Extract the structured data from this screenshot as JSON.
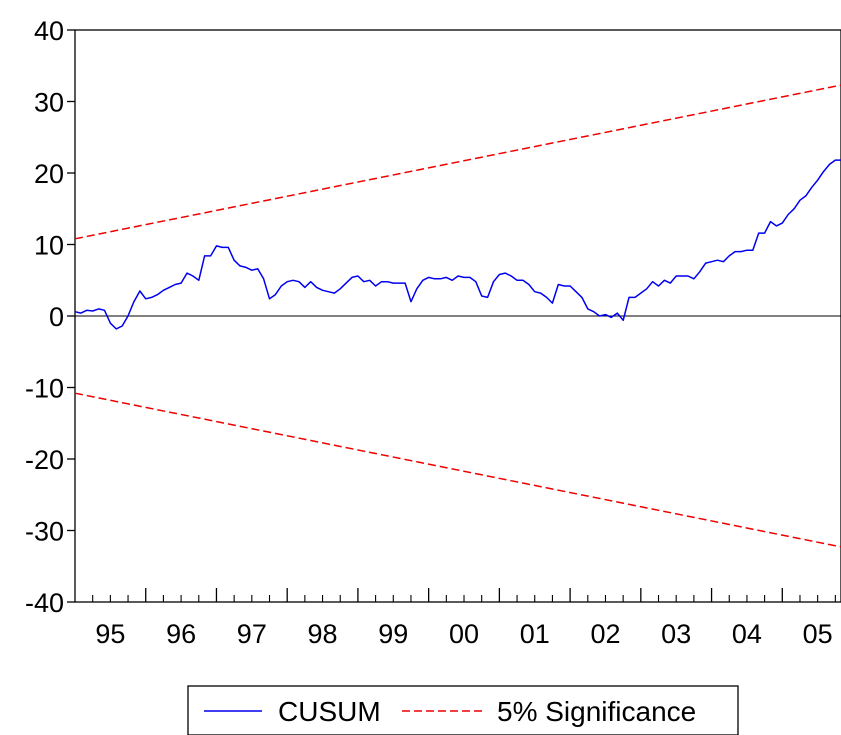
{
  "chart_data": {
    "type": "line",
    "title": "",
    "xlabel": "",
    "ylabel": "",
    "ylim": [
      -40,
      40
    ],
    "xlim": [
      1995.0,
      2005.83
    ],
    "yticks": [
      "40",
      "30",
      "20",
      "10",
      "0",
      "-10",
      "-20",
      "-30",
      "-40"
    ],
    "xtick_labels": [
      "95",
      "96",
      "97",
      "98",
      "99",
      "00",
      "01",
      "02",
      "03",
      "04",
      "05"
    ],
    "grid": false,
    "zero_line": true,
    "legend_position": "bottom-center",
    "colors": {
      "cusum": "#0000ee",
      "significance": "#ee0000"
    },
    "series": [
      {
        "name": "CUSUM",
        "style": "solid",
        "x": [
          1995.0,
          1995.083,
          1995.167,
          1995.25,
          1995.333,
          1995.417,
          1995.5,
          1995.583,
          1995.667,
          1995.75,
          1995.833,
          1995.917,
          1996.0,
          1996.083,
          1996.167,
          1996.25,
          1996.333,
          1996.417,
          1996.5,
          1996.583,
          1996.667,
          1996.75,
          1996.833,
          1996.917,
          1997.0,
          1997.083,
          1997.167,
          1997.25,
          1997.333,
          1997.417,
          1997.5,
          1997.583,
          1997.667,
          1997.75,
          1997.833,
          1997.917,
          1998.0,
          1998.083,
          1998.167,
          1998.25,
          1998.333,
          1998.417,
          1998.5,
          1998.583,
          1998.667,
          1998.75,
          1998.833,
          1998.917,
          1999.0,
          1999.083,
          1999.167,
          1999.25,
          1999.333,
          1999.417,
          1999.5,
          1999.583,
          1999.667,
          1999.75,
          1999.833,
          1999.917,
          2000.0,
          2000.083,
          2000.167,
          2000.25,
          2000.333,
          2000.417,
          2000.5,
          2000.583,
          2000.667,
          2000.75,
          2000.833,
          2000.917,
          2001.0,
          2001.083,
          2001.167,
          2001.25,
          2001.333,
          2001.417,
          2001.5,
          2001.583,
          2001.667,
          2001.75,
          2001.833,
          2001.917,
          2002.0,
          2002.083,
          2002.167,
          2002.25,
          2002.333,
          2002.417,
          2002.5,
          2002.583,
          2002.667,
          2002.75,
          2002.833,
          2002.917,
          2003.0,
          2003.083,
          2003.167,
          2003.25,
          2003.333,
          2003.417,
          2003.5,
          2003.583,
          2003.667,
          2003.75,
          2003.833,
          2003.917,
          2004.0,
          2004.083,
          2004.167,
          2004.25,
          2004.333,
          2004.417,
          2004.5,
          2004.583,
          2004.667,
          2004.75,
          2004.833,
          2004.917,
          2005.0,
          2005.083,
          2005.167,
          2005.25,
          2005.333,
          2005.417,
          2005.5,
          2005.583,
          2005.667,
          2005.75,
          2005.833
        ],
        "values": [
          0.6,
          0.4,
          0.8,
          0.7,
          1.0,
          0.8,
          -1.0,
          -1.8,
          -1.4,
          0.0,
          2.0,
          3.5,
          2.4,
          2.6,
          3.0,
          3.6,
          4.0,
          4.4,
          4.6,
          6.0,
          5.6,
          5.0,
          8.4,
          8.4,
          9.8,
          9.6,
          9.6,
          7.8,
          7.0,
          6.8,
          6.4,
          6.6,
          5.2,
          2.4,
          3.0,
          4.2,
          4.8,
          5.0,
          4.8,
          4.0,
          4.8,
          4.0,
          3.6,
          3.4,
          3.2,
          3.8,
          4.6,
          5.4,
          5.6,
          4.8,
          5.0,
          4.2,
          4.8,
          4.8,
          4.6,
          4.6,
          4.6,
          2.0,
          3.8,
          5.0,
          5.4,
          5.2,
          5.2,
          5.4,
          5.0,
          5.6,
          5.4,
          5.4,
          4.8,
          2.8,
          2.6,
          4.8,
          5.8,
          6.0,
          5.6,
          5.0,
          5.0,
          4.4,
          3.4,
          3.2,
          2.6,
          1.8,
          4.4,
          4.2,
          4.2,
          3.4,
          2.6,
          1.0,
          0.6,
          0.0,
          0.2,
          -0.2,
          0.4,
          -0.6,
          2.6,
          2.6,
          3.2,
          3.8,
          4.8,
          4.2,
          5.0,
          4.6,
          5.6,
          5.6,
          5.6,
          5.2,
          6.2,
          7.4,
          7.6,
          7.8,
          7.6,
          8.4,
          9.0,
          9.0,
          9.2,
          9.2,
          11.6,
          11.6,
          13.2,
          12.6,
          13.0,
          14.2,
          15.0,
          16.2,
          16.8,
          18.0,
          19.0,
          20.2,
          21.2,
          21.8,
          21.8
        ]
      },
      {
        "name": "5% Significance",
        "style": "dashed",
        "x": [
          1995.0,
          2005.83
        ],
        "values": [
          10.8,
          32.3
        ]
      },
      {
        "name": "5% Significance",
        "style": "dashed",
        "legend": false,
        "x": [
          1995.0,
          2005.83
        ],
        "values": [
          -10.8,
          -32.3
        ]
      }
    ]
  }
}
